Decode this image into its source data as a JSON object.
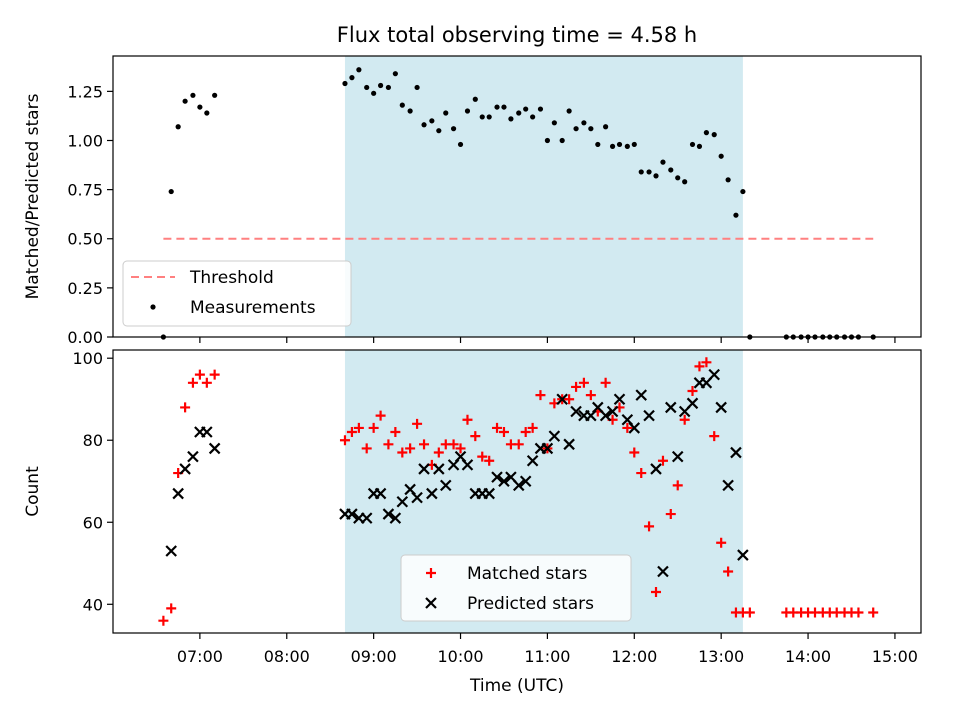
{
  "figure": {
    "title": "Flux total observing time = 4.58 h",
    "xlabel": "Time (UTC)",
    "xticks": [
      {
        "h": 7,
        "label": "07:00"
      },
      {
        "h": 8,
        "label": "08:00"
      },
      {
        "h": 9,
        "label": "09:00"
      },
      {
        "h": 10,
        "label": "10:00"
      },
      {
        "h": 11,
        "label": "11:00"
      },
      {
        "h": 12,
        "label": "12:00"
      },
      {
        "h": 13,
        "label": "13:00"
      },
      {
        "h": 14,
        "label": "14:00"
      },
      {
        "h": 15,
        "label": "15:00"
      }
    ],
    "xlim_hours": [
      6.0,
      15.3
    ],
    "observing_window_hours": [
      8.67,
      13.25
    ],
    "colors": {
      "window": "#add8e6",
      "threshold": "#ff8080",
      "measurements": "#000000",
      "matched": "#ff0000",
      "predicted": "#000000"
    }
  },
  "chart_data": [
    {
      "type": "scatter",
      "ylabel": "Matched/Predicted stars",
      "ylim": [
        0,
        1.43
      ],
      "yticks": [
        "0.00",
        "0.25",
        "0.50",
        "0.75",
        "1.00",
        "1.25"
      ],
      "legend": {
        "placement": "bottom-left",
        "threshold_label": "Threshold",
        "measurements_label": "Measurements"
      },
      "threshold": 0.5,
      "threshold_x": [
        6.58,
        14.75
      ],
      "measurements": {
        "x": [
          6.58,
          6.67,
          6.75,
          6.83,
          6.92,
          7.0,
          7.08,
          7.17,
          8.67,
          8.75,
          8.83,
          8.92,
          9.0,
          9.08,
          9.17,
          9.25,
          9.33,
          9.42,
          9.5,
          9.58,
          9.67,
          9.75,
          9.83,
          9.92,
          10.0,
          10.08,
          10.17,
          10.25,
          10.33,
          10.42,
          10.5,
          10.58,
          10.67,
          10.75,
          10.83,
          10.92,
          11.0,
          11.08,
          11.17,
          11.25,
          11.33,
          11.42,
          11.5,
          11.58,
          11.67,
          11.75,
          11.83,
          11.92,
          12.0,
          12.08,
          12.17,
          12.25,
          12.33,
          12.42,
          12.5,
          12.58,
          12.67,
          12.75,
          12.83,
          12.92,
          13.0,
          13.08,
          13.17,
          13.25,
          13.33,
          13.75,
          13.83,
          13.92,
          14.0,
          14.08,
          14.17,
          14.25,
          14.33,
          14.42,
          14.5,
          14.58,
          14.75
        ],
        "y": [
          0.0,
          0.74,
          1.07,
          1.2,
          1.23,
          1.17,
          1.14,
          1.23,
          1.29,
          1.32,
          1.36,
          1.27,
          1.24,
          1.28,
          1.27,
          1.34,
          1.18,
          1.15,
          1.27,
          1.08,
          1.1,
          1.05,
          1.14,
          1.06,
          0.98,
          1.15,
          1.21,
          1.12,
          1.12,
          1.17,
          1.17,
          1.11,
          1.14,
          1.16,
          1.12,
          1.16,
          1.0,
          1.09,
          1.0,
          1.15,
          1.06,
          1.09,
          1.06,
          0.98,
          1.07,
          0.97,
          0.98,
          0.97,
          0.98,
          0.84,
          0.84,
          0.82,
          0.89,
          0.85,
          0.81,
          0.79,
          0.98,
          0.97,
          1.04,
          1.03,
          0.92,
          0.8,
          0.62,
          0.74,
          0.0,
          0.0,
          0.0,
          0.0,
          0.0,
          0.0,
          0.0,
          0.0,
          0.0,
          0.0,
          0.0,
          0.0,
          0.0
        ]
      }
    },
    {
      "type": "scatter",
      "ylabel": "Count",
      "ylim": [
        33,
        102
      ],
      "yticks": [
        "40",
        "60",
        "80",
        "100"
      ],
      "legend": {
        "placement": "bottom-center",
        "matched_label": "Matched stars",
        "predicted_label": "Predicted stars"
      },
      "series": [
        {
          "name": "Matched stars",
          "x": [
            6.58,
            6.67,
            6.75,
            6.83,
            6.92,
            7.0,
            7.08,
            7.17,
            8.67,
            8.75,
            8.83,
            8.92,
            9.0,
            9.08,
            9.17,
            9.25,
            9.33,
            9.42,
            9.5,
            9.58,
            9.67,
            9.75,
            9.83,
            9.92,
            10.0,
            10.08,
            10.17,
            10.25,
            10.33,
            10.42,
            10.5,
            10.58,
            10.67,
            10.75,
            10.83,
            10.92,
            11.0,
            11.08,
            11.17,
            11.25,
            11.33,
            11.42,
            11.5,
            11.58,
            11.67,
            11.75,
            11.83,
            11.92,
            12.0,
            12.08,
            12.17,
            12.25,
            12.33,
            12.42,
            12.5,
            12.58,
            12.67,
            12.75,
            12.83,
            12.92,
            13.0,
            13.08,
            13.17,
            13.25,
            13.33,
            13.75,
            13.83,
            13.92,
            14.0,
            14.08,
            14.17,
            14.25,
            14.33,
            14.42,
            14.5,
            14.58,
            14.75
          ],
          "y": [
            36,
            39,
            72,
            88,
            94,
            96,
            94,
            96,
            80,
            82,
            83,
            78,
            83,
            86,
            79,
            82,
            77,
            78,
            84,
            79,
            74,
            77,
            79,
            79,
            78,
            85,
            81,
            76,
            75,
            83,
            82,
            79,
            79,
            82,
            83,
            91,
            78,
            89,
            90,
            90,
            93,
            94,
            91,
            87,
            94,
            85,
            88,
            83,
            77,
            72,
            59,
            43,
            75,
            62,
            69,
            85,
            92,
            98,
            99,
            81,
            55,
            48,
            38,
            38,
            38,
            38,
            38,
            38,
            38,
            38,
            38,
            38,
            38,
            38,
            38,
            38,
            38
          ]
        },
        {
          "name": "Predicted stars",
          "x": [
            6.67,
            6.75,
            6.83,
            6.92,
            7.0,
            7.08,
            7.17,
            8.67,
            8.75,
            8.83,
            8.92,
            9.0,
            9.08,
            9.17,
            9.25,
            9.33,
            9.42,
            9.5,
            9.58,
            9.67,
            9.75,
            9.83,
            9.92,
            10.0,
            10.08,
            10.17,
            10.25,
            10.33,
            10.42,
            10.5,
            10.58,
            10.67,
            10.75,
            10.83,
            10.92,
            11.0,
            11.08,
            11.17,
            11.25,
            11.33,
            11.42,
            11.5,
            11.58,
            11.67,
            11.75,
            11.83,
            11.92,
            12.0,
            12.08,
            12.17,
            12.25,
            12.33,
            12.42,
            12.5,
            12.58,
            12.67,
            12.75,
            12.83,
            12.92,
            13.0,
            13.08,
            13.17,
            13.25
          ],
          "y": [
            53,
            67,
            73,
            76,
            82,
            82,
            78,
            62,
            62,
            61,
            61,
            67,
            67,
            62,
            61,
            65,
            68,
            66,
            73,
            67,
            73,
            69,
            74,
            76,
            74,
            67,
            67,
            67,
            71,
            70,
            71,
            69,
            70,
            75,
            78,
            78,
            81,
            90,
            79,
            87,
            86,
            86,
            88,
            86,
            87,
            90,
            85,
            83,
            91,
            86,
            73,
            48,
            88,
            76,
            87,
            89,
            94,
            94,
            96,
            88,
            69,
            77,
            52
          ]
        }
      ]
    }
  ]
}
